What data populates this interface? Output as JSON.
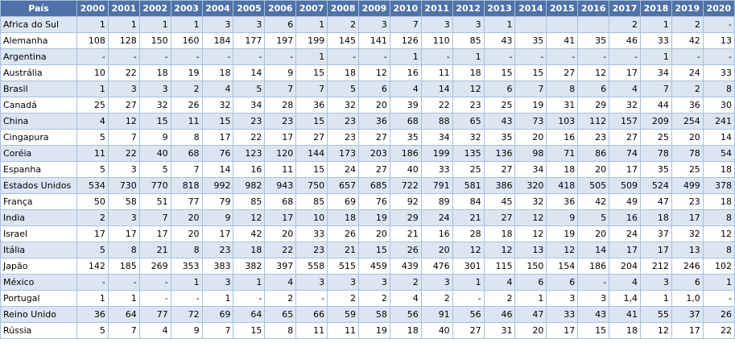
{
  "table": {
    "header": [
      "País",
      "2000",
      "2001",
      "2002",
      "2003",
      "2004",
      "2005",
      "2006",
      "2007",
      "2008",
      "2009",
      "2010",
      "2011",
      "2012",
      "2013",
      "2014",
      "2015",
      "2016",
      "2017",
      "2018",
      "2019",
      "2020"
    ],
    "rows": [
      [
        "Africa do Sul",
        1,
        1,
        1,
        1,
        3,
        3,
        6,
        1,
        2,
        3,
        7,
        3,
        3,
        1,
        null,
        null,
        null,
        2,
        1,
        2,
        "-"
      ],
      [
        "Alemanha",
        108,
        128,
        150,
        160,
        184,
        177,
        197,
        199,
        145,
        141,
        126,
        110,
        85,
        43,
        35,
        41,
        35,
        46,
        33,
        42,
        13
      ],
      [
        "Argentina",
        "-",
        "-",
        "-",
        "-",
        "-",
        "-",
        "-",
        1,
        "-",
        "-",
        1,
        "-",
        1,
        "-",
        "-",
        "-",
        "-",
        "-",
        1,
        "-",
        "-"
      ],
      [
        "Austrália",
        10,
        22,
        18,
        19,
        18,
        14,
        9,
        15,
        18,
        12,
        16,
        11,
        18,
        15,
        15,
        27,
        12,
        17,
        34,
        24,
        33
      ],
      [
        "Brasil",
        1,
        3,
        3,
        2,
        4,
        5,
        7,
        7,
        5,
        6,
        4,
        14,
        12,
        6,
        7,
        8,
        6,
        4,
        7,
        2,
        8
      ],
      [
        "Canadá",
        25,
        27,
        32,
        26,
        32,
        34,
        28,
        36,
        32,
        20,
        39,
        22,
        23,
        25,
        19,
        31,
        29,
        32,
        44,
        36,
        30
      ],
      [
        "China",
        4,
        12,
        15,
        11,
        15,
        23,
        23,
        15,
        23,
        36,
        68,
        88,
        65,
        43,
        73,
        103,
        112,
        157,
        209,
        254,
        241
      ],
      [
        "Cingapura",
        5,
        7,
        9,
        8,
        17,
        22,
        17,
        27,
        23,
        27,
        35,
        34,
        32,
        35,
        20,
        16,
        23,
        27,
        25,
        20,
        14
      ],
      [
        "Coréia",
        11,
        22,
        40,
        68,
        76,
        123,
        120,
        144,
        173,
        203,
        186,
        199,
        135,
        136,
        98,
        71,
        86,
        74,
        78,
        78,
        54
      ],
      [
        "Espanha",
        5,
        3,
        5,
        7,
        14,
        16,
        11,
        15,
        24,
        27,
        40,
        33,
        25,
        27,
        34,
        18,
        20,
        17,
        35,
        25,
        18
      ],
      [
        "Estados Unidos",
        534,
        730,
        770,
        818,
        992,
        982,
        943,
        750,
        657,
        685,
        722,
        791,
        581,
        386,
        320,
        418,
        505,
        509,
        524,
        499,
        378
      ],
      [
        "França",
        50,
        58,
        51,
        77,
        79,
        85,
        68,
        85,
        69,
        76,
        92,
        89,
        84,
        45,
        32,
        36,
        42,
        49,
        47,
        23,
        18
      ],
      [
        "India",
        2,
        3,
        7,
        20,
        9,
        12,
        17,
        10,
        18,
        19,
        29,
        24,
        21,
        27,
        12,
        9,
        5,
        16,
        18,
        17,
        8
      ],
      [
        "Israel",
        17,
        17,
        17,
        20,
        17,
        42,
        20,
        33,
        26,
        20,
        21,
        16,
        28,
        18,
        12,
        19,
        20,
        24,
        37,
        32,
        12
      ],
      [
        "Itália",
        5,
        8,
        21,
        8,
        23,
        18,
        22,
        23,
        21,
        15,
        26,
        20,
        12,
        12,
        13,
        12,
        14,
        17,
        17,
        13,
        8
      ],
      [
        "Japão",
        142,
        185,
        269,
        353,
        383,
        382,
        397,
        558,
        515,
        459,
        439,
        476,
        301,
        115,
        150,
        154,
        186,
        204,
        212,
        246,
        102
      ],
      [
        "México",
        "-",
        "-",
        "-",
        1,
        3,
        1,
        4,
        3,
        3,
        3,
        2,
        3,
        1,
        4,
        6,
        6,
        "-",
        4,
        3,
        6,
        1
      ],
      [
        "Portugal",
        1,
        1,
        "-",
        "-",
        1,
        "-",
        2,
        "-",
        2,
        2,
        4,
        2,
        "-",
        2,
        1,
        3,
        3,
        "1,4",
        1,
        "1,0",
        "-"
      ],
      [
        "Reino Unido",
        36,
        64,
        77,
        72,
        69,
        64,
        65,
        66,
        59,
        58,
        56,
        91,
        56,
        46,
        47,
        33,
        43,
        41,
        55,
        37,
        26
      ],
      [
        "Rússia",
        5,
        7,
        4,
        9,
        7,
        15,
        8,
        11,
        11,
        19,
        18,
        40,
        27,
        31,
        20,
        17,
        15,
        18,
        12,
        17,
        22
      ]
    ]
  }
}
